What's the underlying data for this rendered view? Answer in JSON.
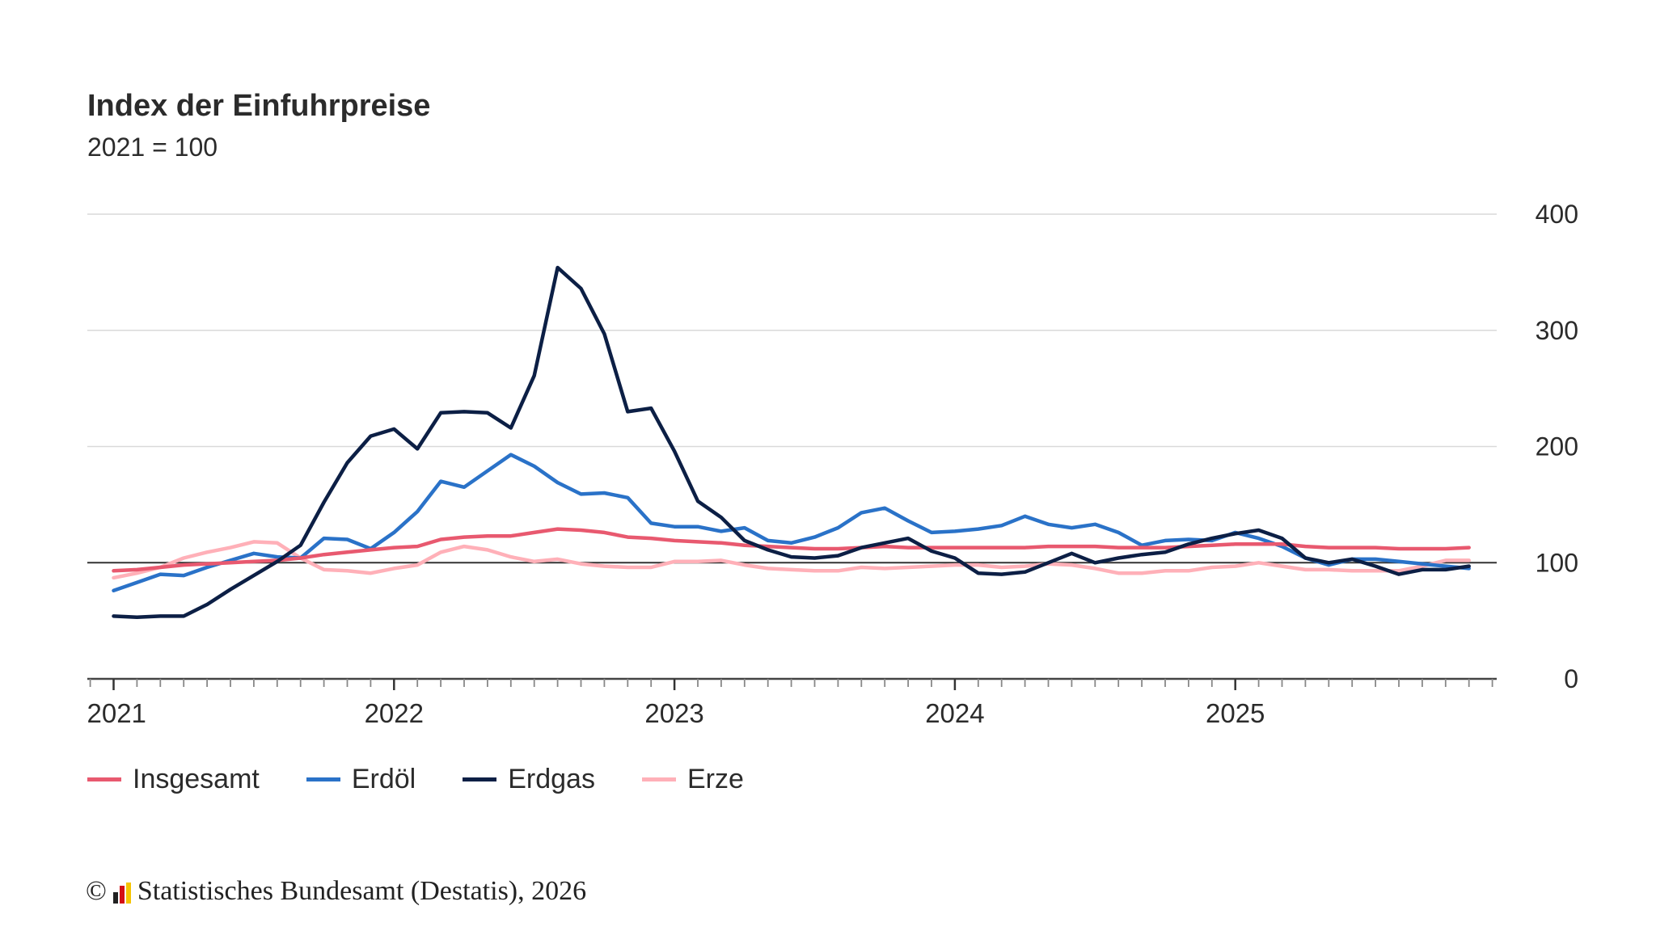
{
  "chart_data": {
    "type": "line",
    "title": "Index der Einfuhrpreise",
    "subtitle": "2021 = 100",
    "xlabel": "",
    "ylabel": "",
    "x_start": "2021-01",
    "x_end": "2025-11",
    "x_frequency": "monthly",
    "x_tick_labels": [
      "2021",
      "2022",
      "2023",
      "2024",
      "2025"
    ],
    "y_tick_labels": [
      "0",
      "100",
      "200",
      "300",
      "400"
    ],
    "ylim": [
      0,
      400
    ],
    "reference_line": 100,
    "grid": true,
    "y_axis_side": "right",
    "legend_position": "bottom-left",
    "series": [
      {
        "name": "Insgesamt",
        "color": "#e8596f",
        "values": [
          93,
          94,
          96,
          98,
          99,
          100,
          101,
          102,
          104,
          107,
          109,
          111,
          113,
          114,
          120,
          122,
          123,
          123,
          126,
          129,
          128,
          126,
          122,
          121,
          119,
          118,
          117,
          115,
          114,
          113,
          112,
          112,
          113,
          114,
          113,
          113,
          113,
          113,
          113,
          113,
          114,
          114,
          114,
          113,
          113,
          113,
          114,
          115,
          116,
          116,
          116,
          114,
          113,
          113,
          113,
          112,
          112,
          112,
          113
        ]
      },
      {
        "name": "Erdöl",
        "color": "#2a72c8",
        "values": [
          76,
          83,
          90,
          89,
          96,
          102,
          108,
          105,
          104,
          121,
          120,
          112,
          126,
          144,
          170,
          165,
          179,
          193,
          183,
          169,
          159,
          160,
          156,
          134,
          131,
          131,
          127,
          130,
          119,
          117,
          122,
          130,
          143,
          147,
          136,
          126,
          127,
          129,
          132,
          140,
          133,
          130,
          133,
          126,
          115,
          119,
          120,
          119,
          126,
          121,
          114,
          104,
          98,
          103,
          103,
          101,
          99,
          97,
          95
        ]
      },
      {
        "name": "Erdgas",
        "color": "#0c1f45",
        "values": [
          54,
          53,
          54,
          54,
          64,
          77,
          89,
          101,
          115,
          152,
          186,
          209,
          215,
          198,
          229,
          230,
          229,
          216,
          261,
          354,
          336,
          297,
          230,
          233,
          196,
          153,
          139,
          119,
          111,
          105,
          104,
          106,
          113,
          117,
          121,
          110,
          104,
          91,
          90,
          92,
          100,
          108,
          100,
          104,
          107,
          109,
          116,
          121,
          125,
          128,
          121,
          104,
          100,
          103,
          97,
          90,
          94,
          94,
          97
        ]
      },
      {
        "name": "Erze",
        "color": "#ffb0b8",
        "values": [
          87,
          91,
          96,
          104,
          109,
          113,
          118,
          117,
          104,
          94,
          93,
          91,
          95,
          98,
          109,
          114,
          111,
          105,
          101,
          103,
          99,
          97,
          96,
          96,
          101,
          101,
          102,
          98,
          95,
          94,
          93,
          93,
          96,
          95,
          96,
          97,
          98,
          98,
          96,
          97,
          99,
          98,
          95,
          91,
          91,
          93,
          93,
          96,
          97,
          100,
          97,
          94,
          94,
          93,
          93,
          93,
          97,
          102,
          102
        ]
      }
    ]
  },
  "footer": {
    "copyright_symbol": "©",
    "source": "Statistisches Bundesamt (Destatis), 2026"
  }
}
